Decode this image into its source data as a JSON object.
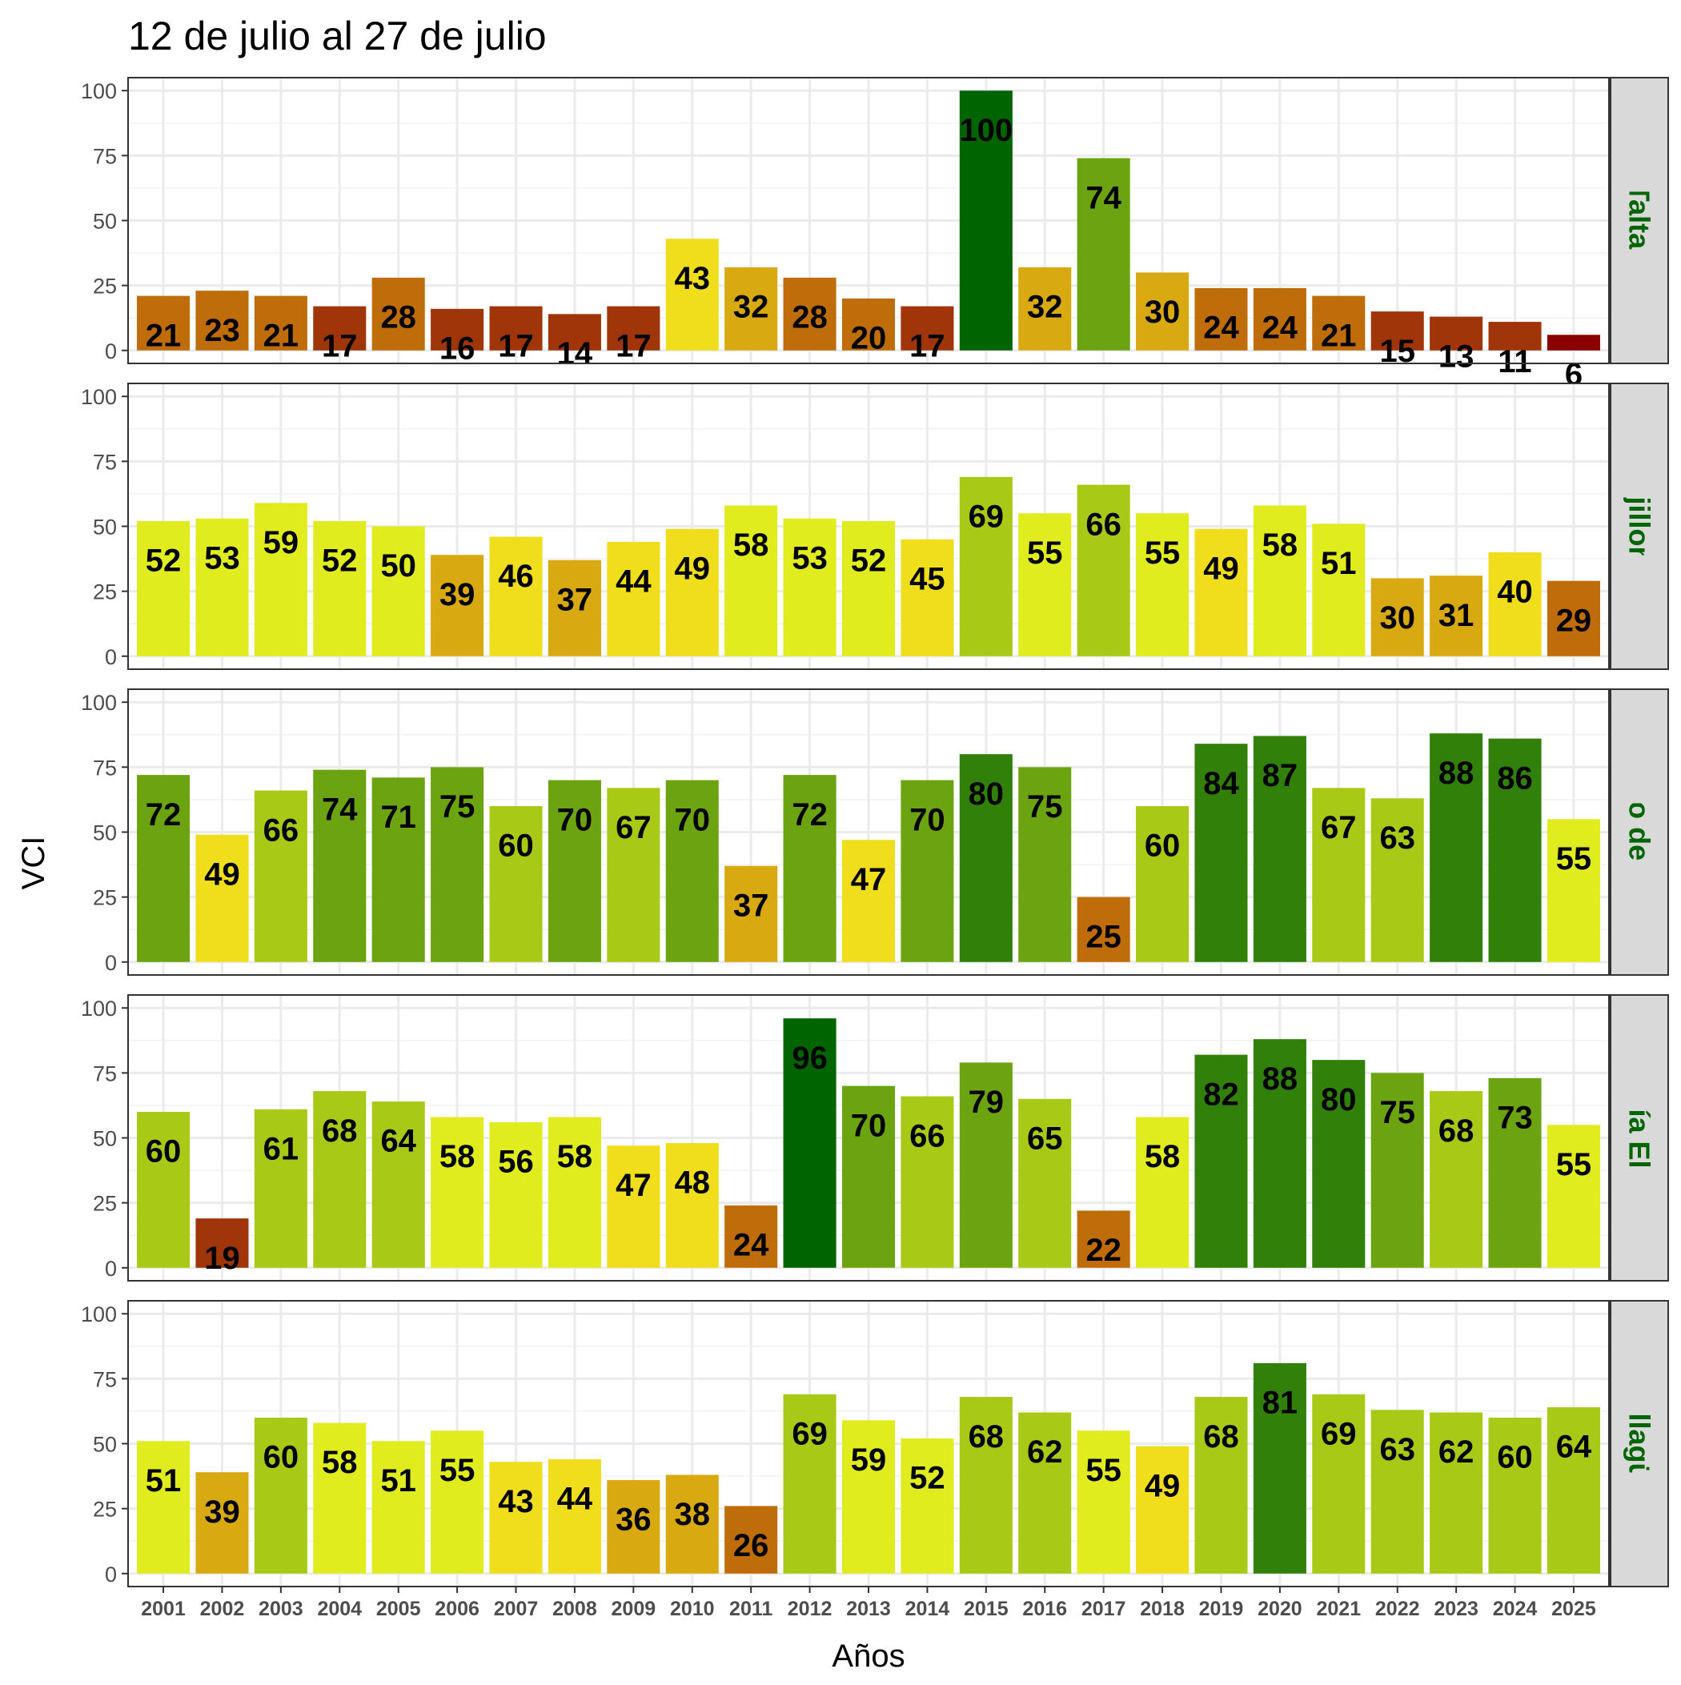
{
  "chart_data": {
    "type": "bar",
    "title": "12 de julio al 27 de julio",
    "xlabel": "Años",
    "ylabel": "VCI",
    "ylim": [
      0,
      100
    ],
    "yticks": [
      0,
      25,
      50,
      75,
      100
    ],
    "grid": true,
    "strip_label_color": "#006400",
    "categories": [
      "2001",
      "2002",
      "2003",
      "2004",
      "2005",
      "2006",
      "2007",
      "2008",
      "2009",
      "2010",
      "2011",
      "2012",
      "2013",
      "2014",
      "2015",
      "2016",
      "2017",
      "2018",
      "2019",
      "2020",
      "2021",
      "2022",
      "2023",
      "2024",
      "2025"
    ],
    "series": [
      {
        "name": "Taltal",
        "values": [
          21,
          23,
          21,
          17,
          28,
          16,
          17,
          14,
          17,
          43,
          32,
          28,
          20,
          17,
          100,
          32,
          74,
          30,
          24,
          24,
          21,
          15,
          13,
          11,
          6
        ]
      },
      {
        "name": "Mejillones",
        "values": [
          52,
          53,
          59,
          52,
          50,
          39,
          46,
          37,
          44,
          49,
          58,
          53,
          52,
          45,
          69,
          55,
          66,
          55,
          49,
          58,
          51,
          30,
          31,
          40,
          29
        ]
      },
      {
        "name": "San Pedro de Atacama",
        "values": [
          72,
          49,
          66,
          74,
          71,
          75,
          60,
          70,
          67,
          70,
          37,
          72,
          47,
          70,
          80,
          75,
          25,
          60,
          84,
          87,
          67,
          63,
          88,
          86,
          55
        ]
      },
      {
        "name": "María Elena",
        "values": [
          60,
          19,
          61,
          68,
          64,
          58,
          56,
          58,
          47,
          48,
          24,
          96,
          70,
          66,
          79,
          65,
          22,
          58,
          82,
          88,
          80,
          75,
          68,
          73,
          55
        ]
      },
      {
        "name": "Ollagüe",
        "values": [
          51,
          39,
          60,
          58,
          51,
          55,
          43,
          44,
          36,
          38,
          26,
          69,
          59,
          52,
          68,
          62,
          55,
          49,
          68,
          81,
          69,
          63,
          62,
          60,
          64
        ]
      }
    ],
    "color_scale": [
      {
        "min": 0,
        "max": 10,
        "color": "#8b0000"
      },
      {
        "min": 10,
        "max": 20,
        "color": "#a0350a"
      },
      {
        "min": 20,
        "max": 30,
        "color": "#bf6c0a"
      },
      {
        "min": 30,
        "max": 40,
        "color": "#d9a912"
      },
      {
        "min": 40,
        "max": 50,
        "color": "#f0de1c"
      },
      {
        "min": 50,
        "max": 60,
        "color": "#e0ec1e"
      },
      {
        "min": 60,
        "max": 70,
        "color": "#a8c916"
      },
      {
        "min": 70,
        "max": 80,
        "color": "#6ba410"
      },
      {
        "min": 80,
        "max": 90,
        "color": "#318009"
      },
      {
        "min": 90,
        "max": 101,
        "color": "#006400"
      }
    ]
  }
}
